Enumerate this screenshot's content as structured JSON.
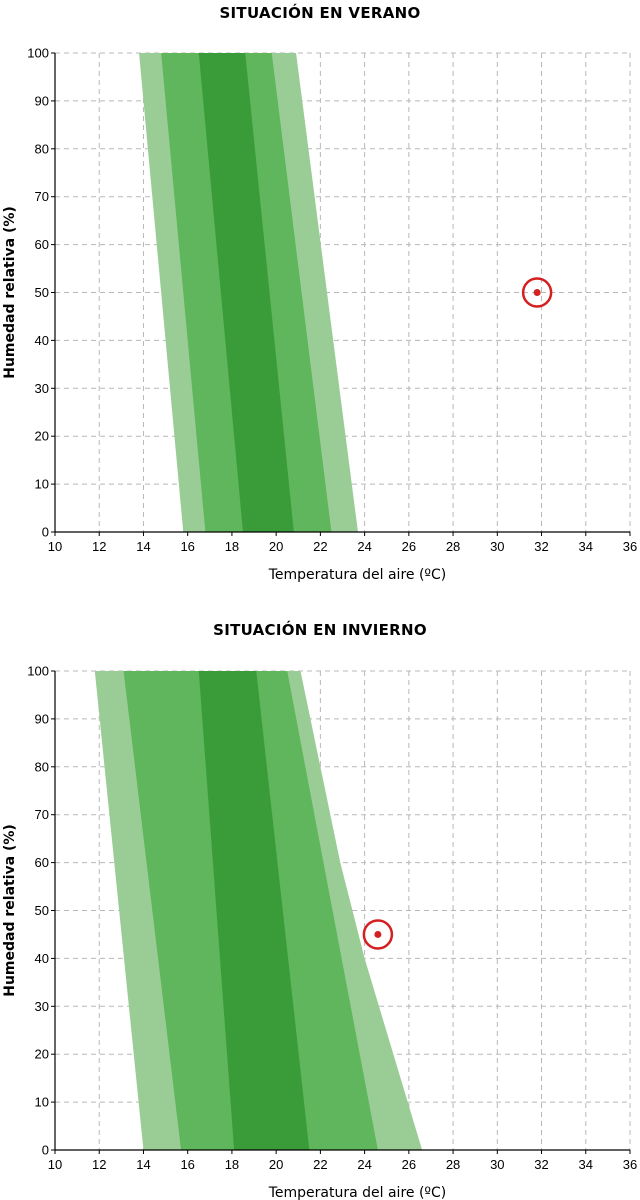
{
  "chart_data": [
    {
      "type": "area",
      "title": "SITUACIÓN EN VERANO",
      "xlabel": "Temperatura del aire (ºC)",
      "ylabel": "Humedad relativa (%)",
      "xlim": [
        10,
        36
      ],
      "ylim": [
        0,
        100
      ],
      "xticks": [
        "10",
        "12",
        "14",
        "16",
        "18",
        "20",
        "22",
        "24",
        "26",
        "28",
        "30",
        "32",
        "34",
        "36"
      ],
      "yticks": [
        "0",
        "10",
        "20",
        "30",
        "40",
        "50",
        "60",
        "70",
        "80",
        "90",
        "100"
      ],
      "grid": true,
      "colors": {
        "outer": "#9acd95",
        "middle": "#5fb65c",
        "inner": "#3a9c38",
        "point": "#d42020"
      },
      "bands": [
        {
          "name": "outer",
          "left": [
            [
              15.8,
              0
            ],
            [
              13.8,
              100
            ]
          ],
          "right": [
            [
              23.7,
              0
            ],
            [
              20.9,
              100
            ]
          ]
        },
        {
          "name": "middle",
          "left": [
            [
              16.8,
              0
            ],
            [
              14.8,
              100
            ]
          ],
          "right": [
            [
              22.5,
              0
            ],
            [
              19.8,
              100
            ]
          ]
        },
        {
          "name": "inner",
          "left": [
            [
              18.5,
              0
            ],
            [
              16.5,
              100
            ]
          ],
          "right": [
            [
              20.8,
              0
            ],
            [
              18.6,
              100
            ]
          ]
        }
      ],
      "points": [
        {
          "x": 31.8,
          "y": 50
        }
      ]
    },
    {
      "type": "area",
      "title": "SITUACIÓN EN INVIERNO",
      "xlabel": "Temperatura del aire (ºC)",
      "ylabel": "Humedad relativa (%)",
      "xlim": [
        10,
        36
      ],
      "ylim": [
        0,
        100
      ],
      "xticks": [
        "10",
        "12",
        "14",
        "16",
        "18",
        "20",
        "22",
        "24",
        "26",
        "28",
        "30",
        "32",
        "34",
        "36"
      ],
      "yticks": [
        "0",
        "10",
        "20",
        "30",
        "40",
        "50",
        "60",
        "70",
        "80",
        "90",
        "100"
      ],
      "grid": true,
      "colors": {
        "outer": "#9acd95",
        "middle": "#5fb65c",
        "inner": "#3a9c38",
        "point": "#d42020"
      },
      "bands": [
        {
          "name": "outer",
          "left": [
            [
              14.0,
              0
            ],
            [
              11.8,
              100
            ]
          ],
          "right": [
            [
              26.6,
              0
            ],
            [
              24.0,
              40
            ],
            [
              22.9,
              60
            ],
            [
              21.1,
              100
            ]
          ]
        },
        {
          "name": "middle",
          "left": [
            [
              15.7,
              0
            ],
            [
              13.1,
              100
            ]
          ],
          "right": [
            [
              24.6,
              0
            ],
            [
              20.5,
              100
            ]
          ]
        },
        {
          "name": "inner",
          "left": [
            [
              18.1,
              0
            ],
            [
              16.5,
              100
            ]
          ],
          "right": [
            [
              21.5,
              0
            ],
            [
              19.1,
              100
            ]
          ]
        }
      ],
      "points": [
        {
          "x": 24.6,
          "y": 45
        }
      ]
    }
  ]
}
